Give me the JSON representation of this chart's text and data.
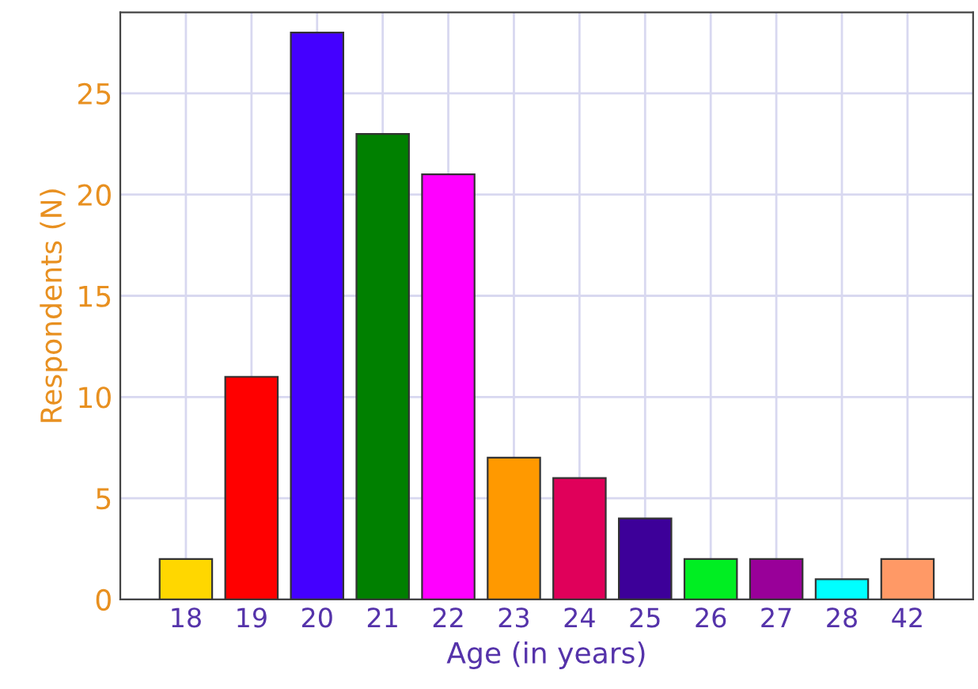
{
  "chart_data": {
    "type": "bar",
    "xlabel": "Age (in years)",
    "ylabel": "Respondents (N)",
    "categories": [
      "18",
      "19",
      "20",
      "21",
      "22",
      "23",
      "24",
      "25",
      "26",
      "27",
      "28",
      "42"
    ],
    "values": [
      2,
      11,
      28,
      23,
      21,
      7,
      6,
      4,
      2,
      2,
      1,
      2
    ],
    "colors": [
      "#ffd700",
      "#ff0000",
      "#4400ff",
      "#008000",
      "#ff00ff",
      "#ff9900",
      "#e0005a",
      "#3d0099",
      "#00ee22",
      "#990099",
      "#00ffff",
      "#ff9966"
    ],
    "ylim": [
      0,
      29
    ],
    "yticks": [
      0,
      5,
      10,
      15,
      20,
      25
    ],
    "grid": true
  }
}
